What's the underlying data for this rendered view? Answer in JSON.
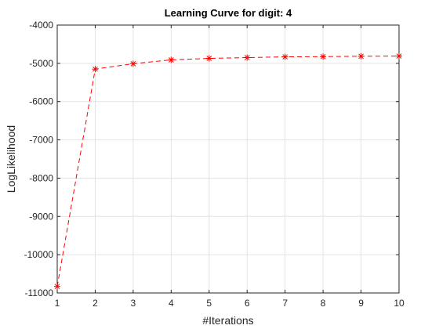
{
  "chart_data": {
    "type": "line",
    "title": "Learning Curve for digit: 4",
    "xlabel": "#Iterations",
    "ylabel": "LogLikelihood",
    "x": [
      1,
      2,
      3,
      4,
      5,
      6,
      7,
      8,
      9,
      10
    ],
    "xlim": [
      1,
      10
    ],
    "ylim": [
      -11000,
      -4000
    ],
    "xticks": [
      "1",
      "2",
      "3",
      "4",
      "5",
      "6",
      "7",
      "8",
      "9",
      "10"
    ],
    "yticks": [
      "-11000",
      "-10000",
      "-9000",
      "-8000",
      "-7000",
      "-6000",
      "-5000",
      "-4000"
    ],
    "ytick_values": [
      -11000,
      -10000,
      -9000,
      -8000,
      -7000,
      -6000,
      -5000,
      -4000
    ],
    "grid": true,
    "series": [
      {
        "values": [
          -10830,
          -5150,
          -5010,
          -4910,
          -4870,
          -4850,
          -4830,
          -4825,
          -4815,
          -4810
        ],
        "color": "#ff0000",
        "line_style": "dashed",
        "marker": "asterisk"
      }
    ]
  }
}
